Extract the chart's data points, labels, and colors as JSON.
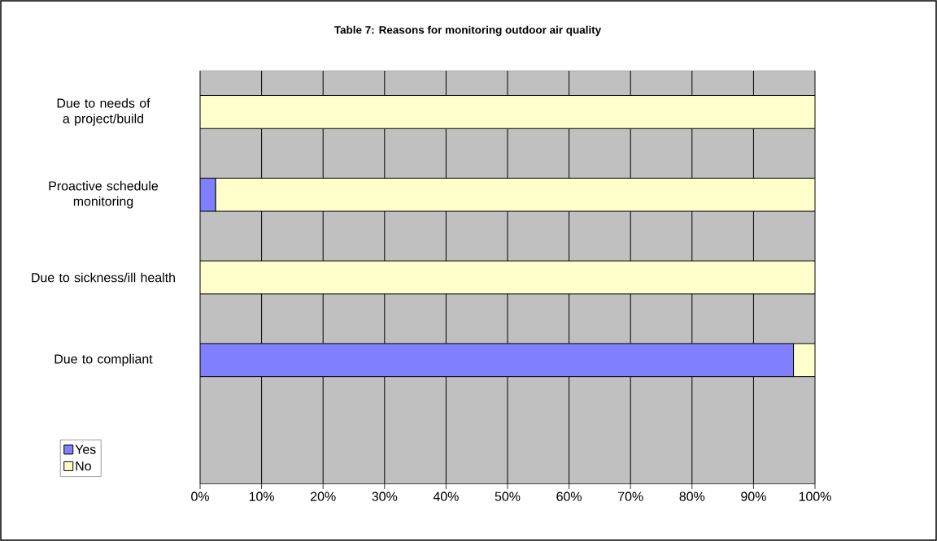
{
  "chart_data": {
    "type": "bar",
    "orientation": "horizontal",
    "stacked": true,
    "title": "Table 7: Reasons for monitoring outdoor air quality",
    "categories": [
      "Due to needs of a project/build",
      "Proactive schedule monitoring",
      "Due to sickness/ill health",
      "Due to compliant",
      null
    ],
    "series": [
      {
        "name": "Yes",
        "color": "#8080ff",
        "values": [
          0,
          2.5,
          0,
          96.5,
          null
        ]
      },
      {
        "name": "No",
        "color": "#ffffcc",
        "values": [
          100,
          97.5,
          100,
          3.5,
          null
        ]
      }
    ],
    "xlim": [
      0,
      100
    ],
    "xticks": [
      {
        "value": 0,
        "label": "0%"
      },
      {
        "value": 10,
        "label": "10%"
      },
      {
        "value": 20,
        "label": "20%"
      },
      {
        "value": 30,
        "label": "30%"
      },
      {
        "value": 40,
        "label": "40%"
      },
      {
        "value": 50,
        "label": "50%"
      },
      {
        "value": 60,
        "label": "60%"
      },
      {
        "value": 70,
        "label": "70%"
      },
      {
        "value": 80,
        "label": "80%"
      },
      {
        "value": 90,
        "label": "90%"
      },
      {
        "value": 100,
        "label": "100%"
      }
    ],
    "grid": "x",
    "legend": "bottom left"
  }
}
